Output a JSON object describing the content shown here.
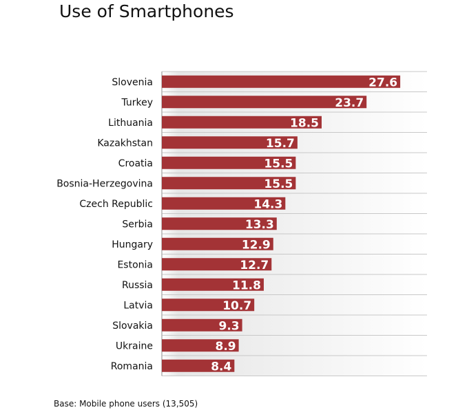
{
  "title": "Use of Smartphones",
  "footnote": "Base: Mobile phone users (13,505)",
  "chart_data": {
    "type": "bar",
    "orientation": "horizontal",
    "title": "Use of Smartphones",
    "categories": [
      "Slovenia",
      "Turkey",
      "Lithuania",
      "Kazakhstan",
      "Croatia",
      "Bosnia-Herzegovina",
      "Czech Republic",
      "Serbia",
      "Hungary",
      "Estonia",
      "Russia",
      "Latvia",
      "Slovakia",
      "Ukraine",
      "Romania"
    ],
    "values": [
      27.6,
      23.7,
      18.5,
      15.7,
      15.5,
      15.5,
      14.3,
      13.3,
      12.9,
      12.7,
      11.8,
      10.7,
      9.3,
      8.9,
      8.4
    ],
    "xlim": [
      0,
      30.7
    ],
    "grid": "horizontal",
    "data_labels": true,
    "bar_color": "#a33336",
    "label_color": "#ffffff"
  }
}
